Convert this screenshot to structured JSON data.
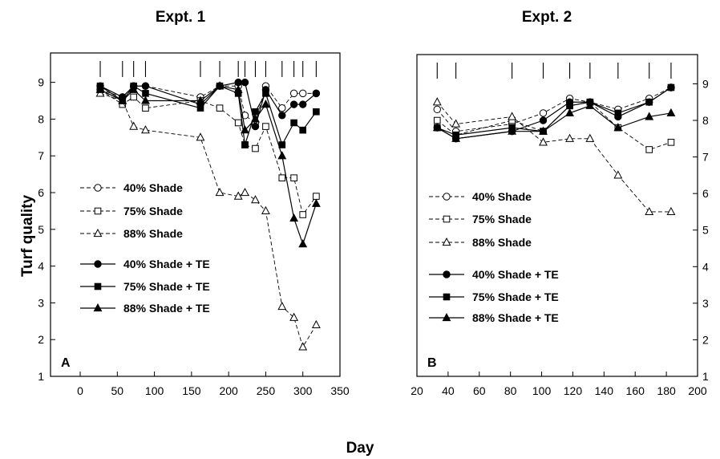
{
  "xlabel": "Day",
  "ylabel": "Turf quality",
  "chart_data": [
    {
      "type": "line",
      "title": "Expt. 1",
      "panel_label": "A",
      "xlim": [
        -40,
        350
      ],
      "ylim": [
        1,
        9.8
      ],
      "xticks": [
        0,
        50,
        100,
        150,
        200,
        250,
        300,
        350
      ],
      "yticks": [
        1,
        2,
        3,
        4,
        5,
        6,
        7,
        8,
        9
      ],
      "y_axis_side": "left",
      "treatment_days": [
        27,
        57,
        72,
        88,
        162,
        188,
        213,
        222,
        236,
        250,
        272,
        288,
        300,
        318
      ],
      "legend": "inside-left",
      "series": [
        {
          "name": "40% Shade",
          "marker": "circle-open",
          "dash": "dashed",
          "x": [
            27,
            57,
            72,
            88,
            162,
            188,
            213,
            222,
            236,
            250,
            272,
            288,
            300,
            318
          ],
          "y": [
            8.8,
            8.6,
            8.9,
            8.9,
            8.6,
            8.9,
            8.9,
            8.1,
            7.9,
            8.9,
            8.3,
            8.7,
            8.7,
            8.7
          ]
        },
        {
          "name": "75% Shade",
          "marker": "square-open",
          "dash": "dashed",
          "x": [
            27,
            57,
            72,
            88,
            162,
            188,
            213,
            222,
            236,
            250,
            272,
            288,
            300,
            318
          ],
          "y": [
            8.8,
            8.4,
            8.6,
            8.3,
            8.5,
            8.3,
            7.9,
            7.3,
            7.2,
            7.8,
            6.4,
            6.4,
            5.4,
            5.9
          ]
        },
        {
          "name": "88% Shade",
          "marker": "triangle-open",
          "dash": "dashed",
          "x": [
            27,
            57,
            72,
            88,
            162,
            188,
            213,
            222,
            236,
            250,
            272,
            288,
            300,
            318
          ],
          "y": [
            8.7,
            8.5,
            7.8,
            7.7,
            7.5,
            6.0,
            5.9,
            6.0,
            5.8,
            5.5,
            2.9,
            2.6,
            1.8,
            2.4
          ]
        },
        {
          "name": "40% Shade + TE",
          "marker": "circle-filled",
          "dash": "solid",
          "x": [
            27,
            57,
            72,
            88,
            162,
            188,
            213,
            222,
            236,
            250,
            272,
            288,
            300,
            318
          ],
          "y": [
            8.9,
            8.6,
            8.9,
            8.9,
            8.4,
            8.9,
            9.0,
            9.0,
            7.8,
            8.8,
            8.1,
            8.4,
            8.4,
            8.7
          ]
        },
        {
          "name": "75% Shade + TE",
          "marker": "square-filled",
          "dash": "solid",
          "x": [
            27,
            57,
            72,
            88,
            162,
            188,
            213,
            222,
            236,
            250,
            272,
            288,
            300,
            318
          ],
          "y": [
            8.9,
            8.5,
            8.9,
            8.7,
            8.3,
            8.9,
            8.7,
            7.3,
            8.2,
            8.7,
            7.3,
            7.9,
            7.7,
            8.2
          ]
        },
        {
          "name": "88% Shade + TE",
          "marker": "triangle-filled",
          "dash": "solid",
          "x": [
            27,
            57,
            72,
            88,
            162,
            188,
            213,
            222,
            236,
            250,
            272,
            288,
            300,
            318
          ],
          "y": [
            8.8,
            8.5,
            8.8,
            8.5,
            8.5,
            8.9,
            8.8,
            7.7,
            8.0,
            8.4,
            7.0,
            5.3,
            4.6,
            5.7
          ]
        }
      ]
    },
    {
      "type": "line",
      "title": "Expt. 2",
      "panel_label": "B",
      "xlim": [
        20,
        200
      ],
      "ylim": [
        1,
        9.8
      ],
      "xticks": [
        20,
        40,
        60,
        80,
        100,
        120,
        140,
        160,
        180,
        200
      ],
      "yticks": [
        1,
        2,
        3,
        4,
        5,
        6,
        7,
        8,
        9
      ],
      "y_axis_side": "right",
      "treatment_days": [
        33,
        45,
        81,
        101,
        118,
        131,
        149,
        169,
        183
      ],
      "legend": "inside-left",
      "series": [
        {
          "name": "40% Shade",
          "marker": "circle-open",
          "dash": "dashed",
          "x": [
            33,
            45,
            81,
            101,
            118,
            131,
            149,
            169,
            183
          ],
          "y": [
            8.3,
            7.7,
            7.9,
            8.2,
            8.6,
            8.5,
            8.3,
            8.6,
            8.9
          ]
        },
        {
          "name": "75% Shade",
          "marker": "square-open",
          "dash": "dashed",
          "x": [
            33,
            45,
            81,
            101,
            118,
            131,
            149,
            169,
            183
          ],
          "y": [
            8.0,
            7.6,
            8.0,
            7.7,
            8.4,
            8.5,
            7.8,
            7.2,
            7.4
          ]
        },
        {
          "name": "88% Shade",
          "marker": "triangle-open",
          "dash": "dashed",
          "x": [
            33,
            45,
            81,
            101,
            118,
            131,
            149,
            169,
            183
          ],
          "y": [
            8.5,
            7.9,
            8.1,
            7.4,
            7.5,
            7.5,
            6.5,
            5.5,
            5.5
          ]
        },
        {
          "name": "40% Shade + TE",
          "marker": "circle-filled",
          "dash": "solid",
          "x": [
            33,
            45,
            81,
            101,
            118,
            131,
            149,
            169,
            183
          ],
          "y": [
            7.8,
            7.5,
            7.7,
            8.0,
            8.5,
            8.5,
            8.1,
            8.5,
            8.9
          ]
        },
        {
          "name": "75% Shade + TE",
          "marker": "square-filled",
          "dash": "solid",
          "x": [
            33,
            45,
            81,
            101,
            118,
            131,
            149,
            169,
            183
          ],
          "y": [
            7.8,
            7.6,
            7.8,
            7.7,
            8.4,
            8.5,
            8.2,
            8.5,
            8.9
          ]
        },
        {
          "name": "88% Shade + TE",
          "marker": "triangle-filled",
          "dash": "solid",
          "x": [
            33,
            45,
            81,
            101,
            118,
            131,
            149,
            169,
            183
          ],
          "y": [
            7.8,
            7.5,
            7.7,
            7.7,
            8.2,
            8.4,
            7.8,
            8.1,
            8.2
          ]
        }
      ]
    }
  ]
}
